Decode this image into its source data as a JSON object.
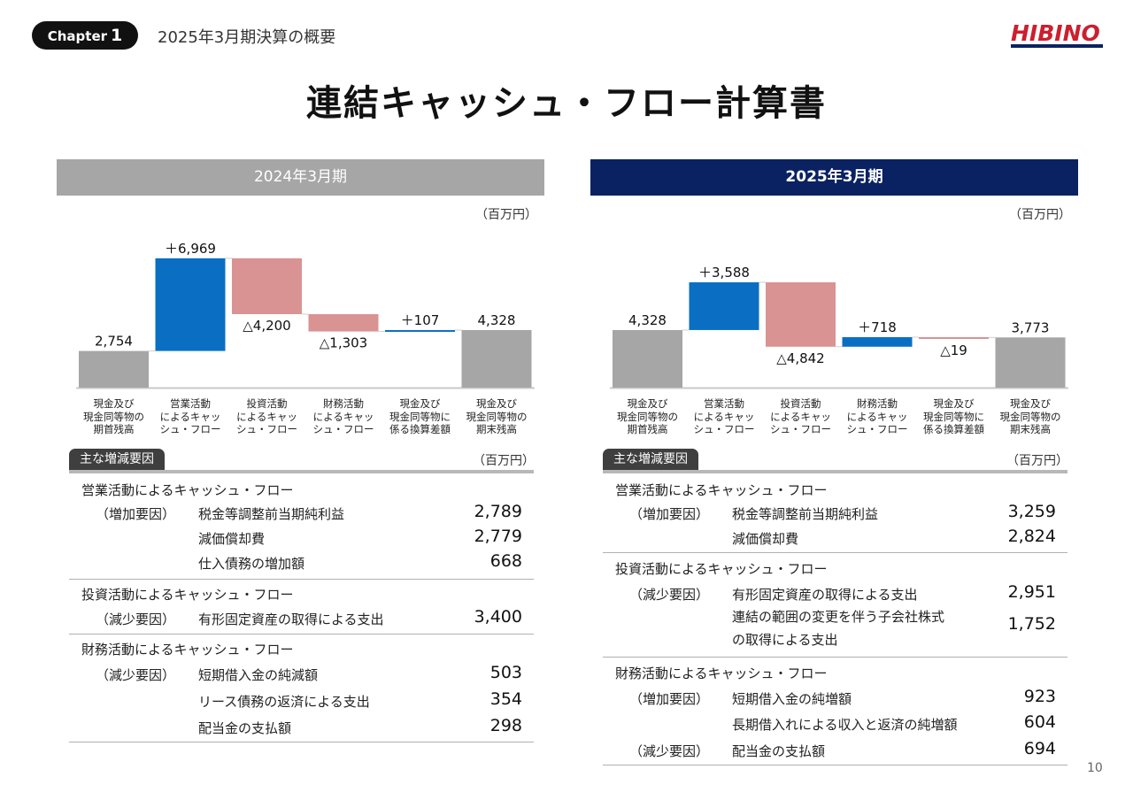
{
  "header": {
    "chapter_word": "Chapter",
    "chapter_number": "1",
    "section_title": "2025年3月期決算の概要",
    "logo_text": "HIBINO",
    "logo_color": "#cc1f2f"
  },
  "page_title": "連結キャッシュ・フロー計算書",
  "page_number": "10",
  "colors": {
    "increase": "#0a6fc2",
    "decrease": "#d99393",
    "balance": "#a6a6a6",
    "header_2024": "#a6a6a6",
    "header_2025": "#0b2262"
  },
  "chart_data": [
    {
      "type": "bar",
      "subtype": "waterfall",
      "title": "2024年3月期",
      "unit": "（百万円）",
      "categories": [
        "現金及び\n現金同等物の\n期首残高",
        "営業活動\nによるキャッ\nシュ・フロー",
        "投資活動\nによるキャッ\nシュ・フロー",
        "財務活動\nによるキャッ\nシュ・フロー",
        "現金及び\n現金同等物に\n係る換算差額",
        "現金及び\n現金同等物の\n期末残高"
      ],
      "values": [
        2754,
        6969,
        -4200,
        -1303,
        107,
        4328
      ],
      "labels": [
        "2,754",
        "＋6,969",
        "△4,200",
        "△1,303",
        "＋107",
        "4,328"
      ],
      "kinds": [
        "balance",
        "increase",
        "decrease",
        "decrease",
        "increase",
        "balance"
      ]
    },
    {
      "type": "bar",
      "subtype": "waterfall",
      "title": "2025年3月期",
      "unit": "（百万円）",
      "categories": [
        "現金及び\n現金同等物の\n期首残高",
        "営業活動\nによるキャッ\nシュ・フロー",
        "投資活動\nによるキャッ\nシュ・フロー",
        "財務活動\nによるキャッ\nシュ・フロー",
        "現金及び\n現金同等物に\n係る換算差額",
        "現金及び\n現金同等物の\n期末残高"
      ],
      "values": [
        4328,
        3588,
        -4842,
        718,
        -19,
        3773
      ],
      "labels": [
        "4,328",
        "＋3,588",
        "△4,842",
        "＋718",
        "△19",
        "3,773"
      ],
      "kinds": [
        "balance",
        "increase",
        "decrease",
        "increase",
        "decrease",
        "balance"
      ]
    }
  ],
  "factors": [
    {
      "tag": "主な増減要因",
      "unit": "（百万円）",
      "sections": [
        {
          "title": "営業活動によるキャッシュ・フロー",
          "rows": [
            {
              "kind": "（増加要因）",
              "label": "税金等調整前当期純利益",
              "value": "2,789"
            },
            {
              "kind": "",
              "label": "減価償却費",
              "value": "2,779"
            },
            {
              "kind": "",
              "label": "仕入債務の増加額",
              "value": "668"
            }
          ]
        },
        {
          "title": "投資活動によるキャッシュ・フロー",
          "rows": [
            {
              "kind": "（減少要因）",
              "label": "有形固定資産の取得による支出",
              "value": "3,400"
            }
          ]
        },
        {
          "title": "財務活動によるキャッシュ・フロー",
          "rows": [
            {
              "kind": "（減少要因）",
              "label": "短期借入金の純減額",
              "value": "503"
            },
            {
              "kind": "",
              "label": "リース債務の返済による支出",
              "value": "354"
            },
            {
              "kind": "",
              "label": "配当金の支払額",
              "value": "298"
            }
          ]
        }
      ]
    },
    {
      "tag": "主な増減要因",
      "unit": "（百万円）",
      "sections": [
        {
          "title": "営業活動によるキャッシュ・フロー",
          "rows": [
            {
              "kind": "（増加要因）",
              "label": "税金等調整前当期純利益",
              "value": "3,259"
            },
            {
              "kind": "",
              "label": "減価償却費",
              "value": "2,824"
            }
          ]
        },
        {
          "title": "投資活動によるキャッシュ・フロー",
          "rows": [
            {
              "kind": "（減少要因）",
              "label": "有形固定資産の取得による支出",
              "value": "2,951"
            },
            {
              "kind": "",
              "label": "連結の範囲の変更を伴う子会社株式\nの取得による支出",
              "value": "1,752"
            }
          ]
        },
        {
          "title": "財務活動によるキャッシュ・フロー",
          "rows": [
            {
              "kind": "（増加要因）",
              "label": "短期借入金の純増額",
              "value": "923"
            },
            {
              "kind": "",
              "label": "長期借入れによる収入と返済の純増額",
              "value": "604"
            },
            {
              "kind": "（減少要因）",
              "label": "配当金の支払額",
              "value": "694"
            }
          ]
        }
      ]
    }
  ]
}
